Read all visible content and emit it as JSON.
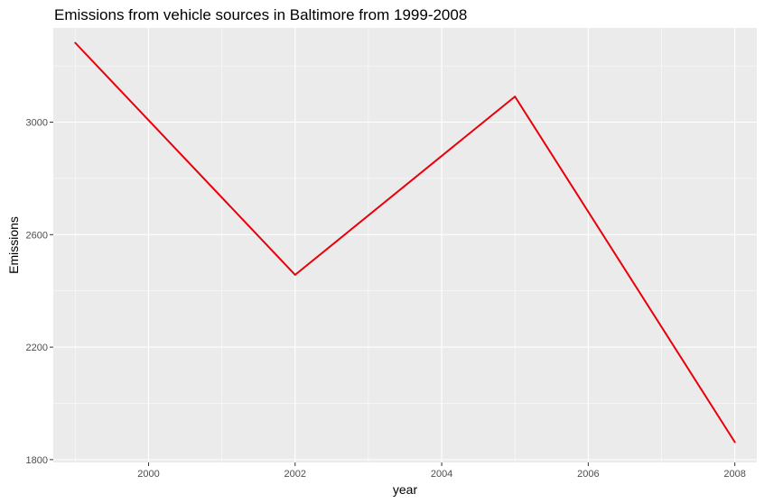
{
  "chart_data": {
    "type": "line",
    "title": "Emissions from vehicle sources in Baltimore from 1999-2008",
    "xlabel": "year",
    "ylabel": "Emissions",
    "x": [
      1999,
      2002,
      2005,
      2008
    ],
    "series": [
      {
        "values": [
          3282,
          2457,
          3091,
          1862
        ],
        "color": "#e8000b"
      }
    ],
    "xlim": [
      1998.7,
      2008.3
    ],
    "ylim": [
      1790,
      3335
    ],
    "xticks": [
      2000,
      2002,
      2004,
      2006,
      2008
    ],
    "xtick_labels": [
      "2000",
      "2002",
      "2004",
      "2006",
      "2008"
    ],
    "yticks": [
      1800,
      2200,
      2600,
      3000
    ],
    "ytick_labels": [
      "1800",
      "2200",
      "2600",
      "3000"
    ],
    "grid": true,
    "panel_background": "#ebebeb",
    "grid_color": "#ffffff"
  }
}
